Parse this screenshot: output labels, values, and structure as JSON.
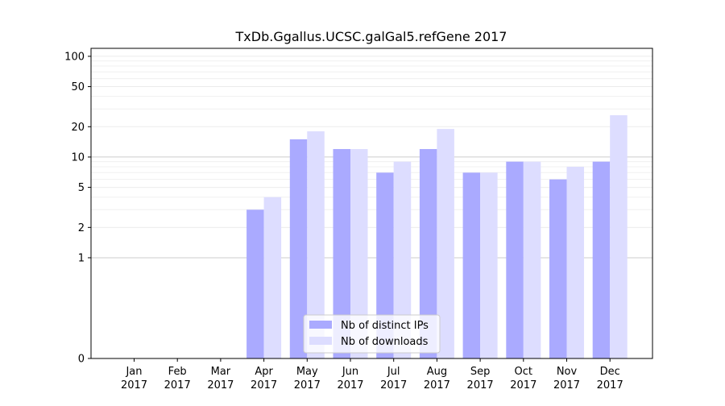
{
  "chart_data": {
    "type": "bar",
    "title": "TxDb.Ggallus.UCSC.galGal5.refGene 2017",
    "xlabel": "",
    "ylabel": "",
    "yscale": "symlog",
    "ylim": [
      0,
      120
    ],
    "grid": "horizontal",
    "legend_position": "bottom-center",
    "categories": [
      [
        "Jan",
        "2017"
      ],
      [
        "Feb",
        "2017"
      ],
      [
        "Mar",
        "2017"
      ],
      [
        "Apr",
        "2017"
      ],
      [
        "May",
        "2017"
      ],
      [
        "Jun",
        "2017"
      ],
      [
        "Jul",
        "2017"
      ],
      [
        "Aug",
        "2017"
      ],
      [
        "Sep",
        "2017"
      ],
      [
        "Oct",
        "2017"
      ],
      [
        "Nov",
        "2017"
      ],
      [
        "Dec",
        "2017"
      ]
    ],
    "yticks": [
      {
        "value": 0,
        "label": "0"
      },
      {
        "value": 1,
        "label": "1"
      },
      {
        "value": 2,
        "label": "2"
      },
      {
        "value": 5,
        "label": "5"
      },
      {
        "value": 10,
        "label": "10"
      },
      {
        "value": 20,
        "label": "20"
      },
      {
        "value": 50,
        "label": "50"
      },
      {
        "value": 100,
        "label": "100"
      }
    ],
    "series": [
      {
        "name": "Nb of distinct IPs",
        "color": "#aaaaff",
        "values": [
          0,
          0,
          0,
          3,
          15,
          12,
          7,
          12,
          7,
          9,
          6,
          9
        ]
      },
      {
        "name": "Nb of downloads",
        "color": "#ddddff",
        "values": [
          0,
          0,
          0,
          4,
          18,
          12,
          9,
          19,
          7,
          9,
          8,
          26
        ]
      }
    ]
  }
}
